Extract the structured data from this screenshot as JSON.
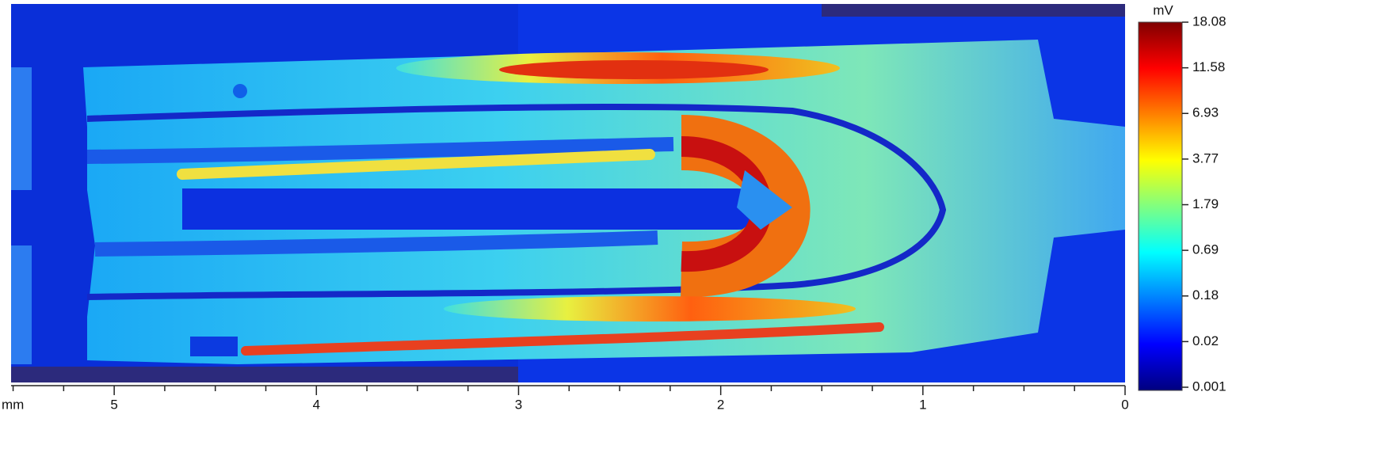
{
  "chart_data": {
    "type": "heatmap",
    "colorbar_label": "mV",
    "colorbar_ticks": [
      18.08,
      11.58,
      6.93,
      3.77,
      1.79,
      0.69,
      0.18,
      0.02,
      0.001
    ],
    "colormap": [
      "#00007f",
      "#0000ff",
      "#0080ff",
      "#00ffff",
      "#80ff80",
      "#ffff00",
      "#ff8000",
      "#ff0000",
      "#7f0000"
    ],
    "x_label": "mm",
    "xlim": [
      5.51,
      0
    ],
    "xticks": [
      5,
      4,
      3,
      2,
      1,
      0
    ],
    "xminorticks": [
      5.5,
      5.25,
      4.75,
      4.5,
      4.25,
      3.75,
      3.5,
      3.25,
      2.75,
      2.5,
      2.25,
      1.75,
      1.5,
      1.25,
      0.75,
      0.5,
      0.25
    ]
  }
}
